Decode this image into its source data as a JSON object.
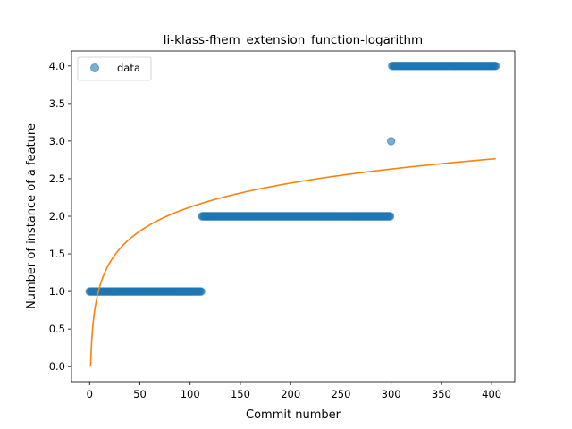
{
  "chart_data": {
    "type": "scatter",
    "title": "li-klass-fhem_extension_function-logarithm",
    "xlabel": "Commit number",
    "ylabel": "Number of instance of a feature",
    "xlim": [
      -18,
      423
    ],
    "ylim": [
      -0.2,
      4.2
    ],
    "xticks": [
      0,
      50,
      100,
      150,
      200,
      250,
      300,
      350,
      400
    ],
    "yticks": [
      0.0,
      0.5,
      1.0,
      1.5,
      2.0,
      2.5,
      3.0,
      3.5,
      4.0
    ],
    "legend": {
      "position": "top-left",
      "entries": [
        "data"
      ]
    },
    "colors": {
      "data": "#1f77b4",
      "fit": "#ff7f0e"
    },
    "series": [
      {
        "name": "data",
        "kind": "scatter",
        "segments": [
          {
            "x_start": 0,
            "x_end": 111,
            "y": 1.0
          },
          {
            "x_start": 112,
            "x_end": 299,
            "y": 2.0
          },
          {
            "x_start": 300,
            "x_end": 300,
            "y": 3.0
          },
          {
            "x_start": 301,
            "x_end": 404,
            "y": 4.0
          }
        ]
      },
      {
        "kind": "line",
        "model": "logarithm",
        "a": 0.4608,
        "b": 0.0,
        "x_start": 1,
        "x_end": 404
      }
    ]
  }
}
